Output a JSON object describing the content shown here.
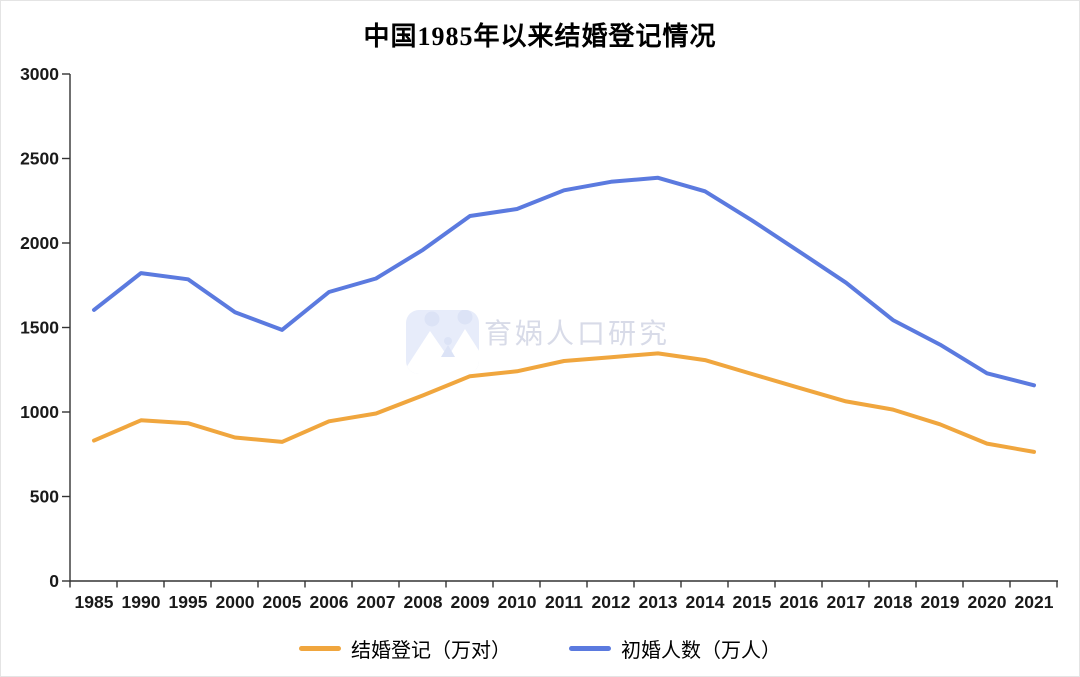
{
  "chart_data": {
    "type": "line",
    "title": "中国1985年以来结婚登记情况",
    "categories": [
      "1985",
      "1990",
      "1995",
      "2000",
      "2005",
      "2006",
      "2007",
      "2008",
      "2009",
      "2010",
      "2011",
      "2012",
      "2013",
      "2014",
      "2015",
      "2016",
      "2017",
      "2018",
      "2019",
      "2020",
      "2021"
    ],
    "series": [
      {
        "name": "结婚登记（万对）",
        "color": "#F0A63E",
        "values": [
          831,
          951,
          934,
          849,
          823,
          945,
          991,
          1098,
          1212,
          1241,
          1302,
          1324,
          1347,
          1307,
          1225,
          1143,
          1063,
          1014,
          927,
          813,
          764
        ]
      },
      {
        "name": "初婚人数（万人）",
        "color": "#5B7ADF",
        "values": [
          1604,
          1822,
          1785,
          1590,
          1486,
          1710,
          1790,
          1960,
          2160,
          2201,
          2312,
          2362,
          2386,
          2306,
          2134,
          1950,
          1765,
          1544,
          1399,
          1229,
          1158
        ]
      }
    ],
    "xlabel": "",
    "ylabel": "",
    "ylim": [
      0,
      3000
    ],
    "y_ticks": [
      0,
      500,
      1000,
      1500,
      2000,
      2500,
      3000
    ],
    "grid": false,
    "legend_position": "bottom"
  },
  "watermark": {
    "text": "育娲人口研究",
    "logo": "yuwa-logo"
  },
  "colors": {
    "axis": "#333333",
    "tick_label": "#1a1a1a",
    "watermark_text": "#d8dbe8",
    "watermark_logo_bg": "#e7ecfa"
  }
}
